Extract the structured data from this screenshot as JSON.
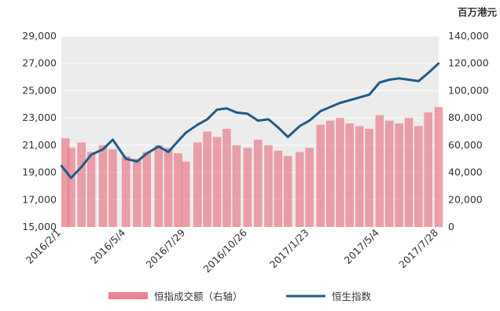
{
  "chart_data": {
    "type": "line",
    "title": "",
    "right_axis_unit": "百万港元",
    "y_left": {
      "min": 15000,
      "max": 29000,
      "ticks": [
        "15,000",
        "17,000",
        "19,000",
        "21,000",
        "23,000",
        "25,000",
        "27,000",
        "29,000"
      ]
    },
    "y_right": {
      "min": 0,
      "max": 140000,
      "ticks": [
        "0",
        "20,000",
        "40,000",
        "60,000",
        "80,000",
        "100,000",
        "120,000",
        "140,000"
      ]
    },
    "x_ticks": [
      "2016/2/1",
      "2016/5/4",
      "2016/7/29",
      "2016/10/26",
      "2017/1/23",
      "2017/5/4",
      "2017/7/28"
    ],
    "grid": true,
    "legend_position": "bottom",
    "series": [
      {
        "name": "恒指成交额（右轴）",
        "kind": "bar",
        "axis": "right",
        "color": "#e8838f",
        "x": [
          "2016/2/1",
          "2016/2/15",
          "2016/3/1",
          "2016/3/15",
          "2016/4/1",
          "2016/4/15",
          "2016/5/4",
          "2016/5/20",
          "2016/6/3",
          "2016/6/20",
          "2016/7/4",
          "2016/7/18",
          "2016/7/29",
          "2016/8/15",
          "2016/8/29",
          "2016/9/12",
          "2016/9/26",
          "2016/10/10",
          "2016/10/26",
          "2016/11/10",
          "2016/11/25",
          "2016/12/9",
          "2016/12/23",
          "2017/1/9",
          "2017/1/23",
          "2017/2/8",
          "2017/2/22",
          "2017/3/8",
          "2017/3/22",
          "2017/4/5",
          "2017/4/19",
          "2017/5/4",
          "2017/5/18",
          "2017/6/1",
          "2017/6/15",
          "2017/6/29",
          "2017/7/13",
          "2017/7/28"
        ],
        "values": [
          65000,
          58000,
          62000,
          55000,
          60000,
          57000,
          52000,
          50000,
          55000,
          60000,
          58000,
          54000,
          48000,
          62000,
          70000,
          66000,
          72000,
          60000,
          58000,
          64000,
          60000,
          56000,
          52000,
          55000,
          58000,
          75000,
          78000,
          80000,
          76000,
          74000,
          72000,
          82000,
          78000,
          76000,
          80000,
          74000,
          84000,
          88000
        ]
      },
      {
        "name": "恒生指数",
        "kind": "line",
        "axis": "left",
        "color": "#1f5c84",
        "x": [
          "2016/2/1",
          "2016/2/15",
          "2016/3/1",
          "2016/3/15",
          "2016/4/1",
          "2016/4/15",
          "2016/5/4",
          "2016/5/20",
          "2016/6/3",
          "2016/6/20",
          "2016/7/4",
          "2016/7/18",
          "2016/7/29",
          "2016/8/15",
          "2016/8/29",
          "2016/9/12",
          "2016/9/26",
          "2016/10/10",
          "2016/10/26",
          "2016/11/10",
          "2016/11/25",
          "2016/12/9",
          "2016/12/23",
          "2017/1/9",
          "2017/1/23",
          "2017/2/8",
          "2017/2/22",
          "2017/3/8",
          "2017/3/22",
          "2017/4/5",
          "2017/4/19",
          "2017/5/4",
          "2017/5/18",
          "2017/6/1",
          "2017/6/15",
          "2017/6/29",
          "2017/7/13",
          "2017/7/28"
        ],
        "values": [
          19500,
          18600,
          19400,
          20300,
          20700,
          21400,
          20000,
          19800,
          20400,
          20900,
          20500,
          21300,
          21900,
          22500,
          22900,
          23600,
          23700,
          23400,
          23300,
          22800,
          22900,
          22300,
          21600,
          22400,
          22800,
          23500,
          23800,
          24100,
          24300,
          24500,
          24700,
          25600,
          25800,
          25900,
          25800,
          25700,
          26300,
          27000
        ]
      }
    ]
  },
  "legend": {
    "volume_label": "恒指成交额（右轴）",
    "index_label": "恒生指数"
  }
}
